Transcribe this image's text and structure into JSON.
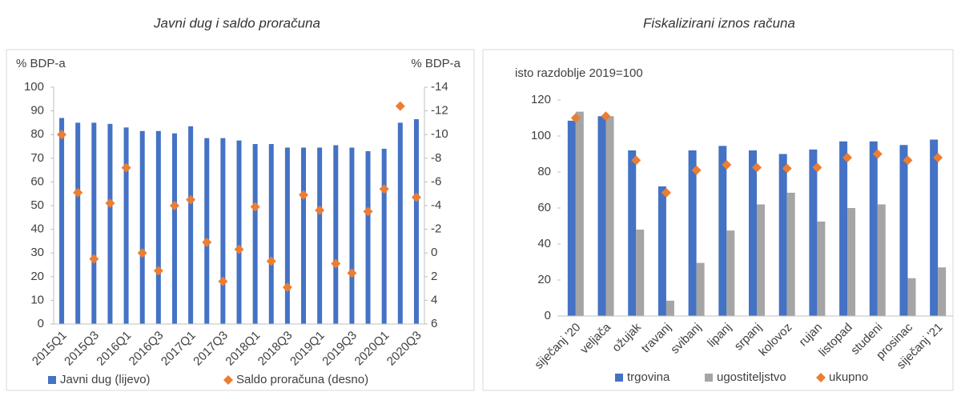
{
  "chart_data": [
    {
      "type": "bar",
      "title": "Javni dug i saldo proračuna",
      "y_label": "% BDP-a",
      "y2_label": "% BDP-a",
      "categories": [
        "2015Q1",
        null,
        "2015Q3",
        null,
        "2016Q1",
        null,
        "2016Q3",
        null,
        "2017Q1",
        null,
        "2017Q3",
        null,
        "2018Q1",
        null,
        "2018Q3",
        null,
        "2019Q1",
        null,
        "2019Q3",
        null,
        "2020Q1",
        null,
        "2020Q3"
      ],
      "series": [
        {
          "name": "Javni dug (lijevo)",
          "color": "#4472c4",
          "style": "bar",
          "values": [
            87,
            85,
            85,
            84.5,
            83,
            81.5,
            81.5,
            80.5,
            83.5,
            78.5,
            78.5,
            77.5,
            76,
            76,
            74.5,
            74.5,
            74.5,
            75.5,
            74.5,
            73,
            74,
            85,
            86.5
          ]
        },
        {
          "name": "Saldo proračuna (desno)",
          "color": "#ed7d31",
          "style": "diamond",
          "axis": "y2",
          "values": [
            -10,
            -5.1,
            0.5,
            -4.2,
            -7.2,
            0,
            1.5,
            -4,
            -4.5,
            -0.9,
            2.4,
            -0.3,
            -3.9,
            0.7,
            2.9,
            -4.9,
            -3.6,
            0.9,
            1.7,
            -3.5,
            -5.4,
            -12.4,
            -4.7
          ]
        }
      ],
      "ylim": [
        0,
        100
      ],
      "yticks": [
        0,
        10,
        20,
        30,
        40,
        50,
        60,
        70,
        80,
        90,
        100
      ],
      "y2lim": [
        6,
        -14
      ],
      "y2ticks": [
        6,
        4,
        2,
        0,
        -2,
        -4,
        -6,
        -8,
        -10,
        -12,
        -14
      ],
      "legend": "bottom"
    },
    {
      "type": "bar",
      "title": "Fiskalizirani iznos računa",
      "y_label": "isto razdoblje 2019=100",
      "categories": [
        "siječanj '20",
        "veljača",
        "ožujak",
        "travanj",
        "svibanj",
        "lipanj",
        "srpanj",
        "kolovoz",
        "rujan",
        "listopad",
        "studeni",
        "prosinac",
        "siječanj '21"
      ],
      "series": [
        {
          "name": "trgovina",
          "color": "#4472c4",
          "style": "bar",
          "values": [
            108.5,
            111,
            92,
            72,
            92,
            94.5,
            92,
            90,
            92.5,
            97,
            97,
            95,
            98
          ]
        },
        {
          "name": "ugostiteljstvo",
          "color": "#a5a5a5",
          "style": "bar",
          "values": [
            113.5,
            111,
            48,
            8.5,
            29.5,
            47.5,
            62,
            68.5,
            52.5,
            60,
            62,
            21,
            27
          ]
        },
        {
          "name": "ukupno",
          "color": "#ed7d31",
          "style": "diamond",
          "values": [
            110,
            111,
            86.5,
            68.5,
            81,
            84,
            82.5,
            82,
            82.5,
            88,
            90,
            86.5,
            88
          ]
        }
      ],
      "ylim": [
        0,
        120
      ],
      "yticks": [
        0,
        20,
        40,
        60,
        80,
        100,
        120
      ],
      "legend": "bottom"
    }
  ]
}
